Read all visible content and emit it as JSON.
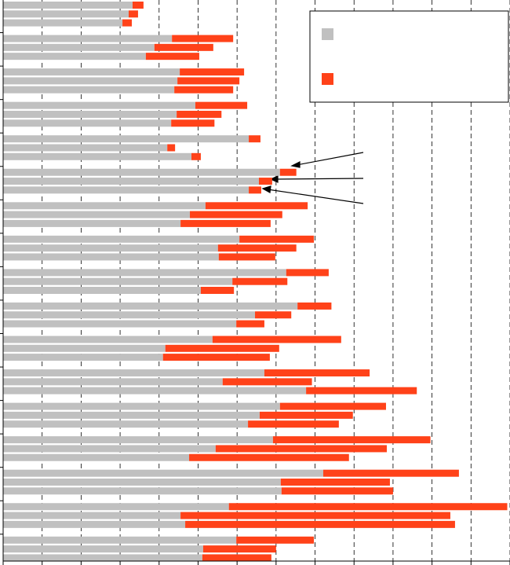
{
  "chart_data": {
    "type": "stacked-bar-horizontal",
    "categories": [
      null,
      null,
      null,
      null,
      null,
      null,
      null,
      null,
      null,
      null,
      null,
      null,
      null,
      null,
      null,
      null,
      null,
      null,
      null,
      null,
      null,
      null,
      null,
      null,
      null,
      null,
      null,
      null,
      null,
      null,
      null,
      null,
      null,
      null,
      null,
      null,
      null,
      null,
      null,
      null,
      null,
      null,
      null,
      null,
      null,
      null,
      null,
      null,
      null,
      null,
      null
    ],
    "series": [
      {
        "color": "#c0c0c0",
        "values": [
          3.32,
          3.22,
          3.06,
          4.33,
          3.88,
          3.66,
          4.53,
          4.47,
          4.39,
          4.93,
          4.45,
          4.31,
          6.3,
          4.21,
          4.83,
          7.1,
          6.56,
          6.3,
          5.19,
          4.79,
          4.55,
          6.06,
          5.51,
          5.53,
          7.26,
          5.88,
          5.07,
          7.55,
          6.46,
          5.98,
          5.37,
          4.16,
          4.1,
          6.7,
          5.63,
          7.77,
          7.1,
          6.58,
          6.28,
          6.92,
          5.45,
          4.77,
          8.21,
          7.12,
          7.14,
          5.79,
          4.55,
          4.67,
          5.98,
          5.13,
          5.11
        ]
      },
      {
        "color": "#ff4219",
        "values": [
          0.28,
          0.24,
          0.24,
          1.57,
          1.51,
          1.37,
          1.65,
          1.59,
          1.51,
          1.33,
          1.15,
          1.11,
          0.3,
          0.2,
          0.24,
          0.42,
          0.34,
          0.32,
          2.62,
          2.37,
          2.31,
          1.91,
          2.01,
          1.45,
          1.09,
          1.41,
          0.85,
          0.87,
          0.93,
          0.72,
          3.3,
          2.92,
          2.74,
          2.7,
          2.29,
          2.84,
          2.72,
          2.39,
          2.33,
          4.04,
          4.39,
          4.1,
          3.48,
          2.8,
          2.86,
          7.14,
          6.92,
          6.92,
          1.99,
          1.87,
          1.77
        ]
      }
    ],
    "xlim": [
      0,
      13
    ],
    "xticks": [
      0,
      1,
      2,
      3,
      4,
      5,
      6,
      7,
      8,
      9,
      10,
      11,
      12,
      13
    ],
    "grid": true
  }
}
